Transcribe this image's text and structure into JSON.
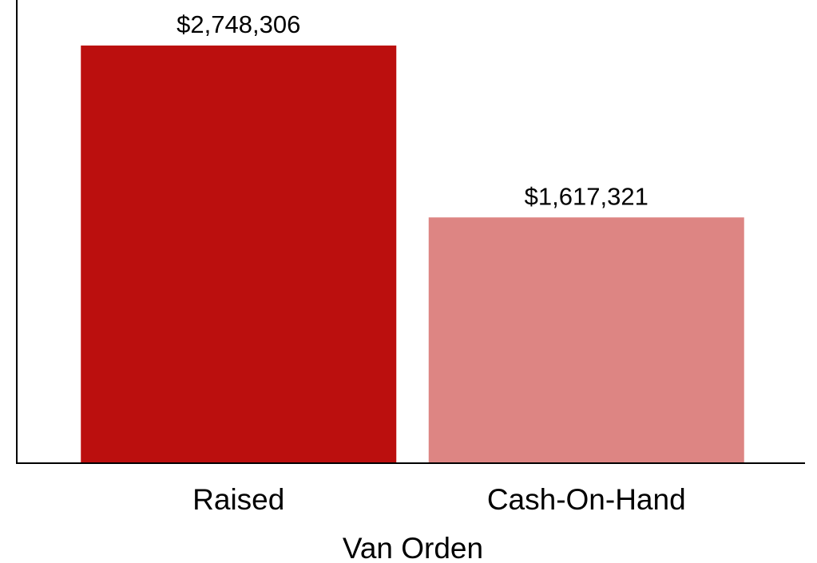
{
  "chart_data": {
    "type": "bar",
    "categories": [
      "Raised",
      "Cash-On-Hand"
    ],
    "values": [
      2748306,
      1617321
    ],
    "value_labels": [
      "$2,748,306",
      "$1,617,321"
    ],
    "colors": [
      "#bb0f0e",
      "#dd8583"
    ],
    "xlabel": "Van Orden",
    "ylim": [
      0,
      3048000
    ]
  }
}
